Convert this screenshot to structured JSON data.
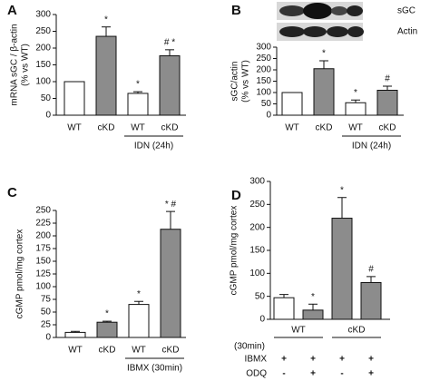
{
  "chart_data": [
    {
      "type": "bar",
      "title": "A",
      "ylabel": [
        "mRNA sGC / β-actin",
        "(% vs WT)"
      ],
      "categories": [
        "WT",
        "cKD",
        "WT",
        "cKD"
      ],
      "values": [
        100,
        235,
        65,
        177
      ],
      "errors": [
        0,
        28,
        5,
        18
      ],
      "colors": [
        "#ffffff",
        "#8c8c8c",
        "#ffffff",
        "#8c8c8c"
      ],
      "annotations": [
        null,
        "*",
        "*",
        "# *"
      ],
      "bracket": "IDN (24h)",
      "ylim": [
        0,
        300
      ],
      "yticks": [
        0,
        50,
        100,
        150,
        200,
        250,
        300
      ]
    },
    {
      "type": "bar",
      "title": "B",
      "ylabel": [
        "sGC/actin",
        "(% vs WT)"
      ],
      "blot_labels": [
        "sGC",
        "Actin"
      ],
      "categories": [
        "WT",
        "cKD",
        "WT",
        "cKD"
      ],
      "values": [
        100,
        205,
        55,
        110
      ],
      "errors": [
        0,
        35,
        12,
        18
      ],
      "colors": [
        "#ffffff",
        "#8c8c8c",
        "#ffffff",
        "#8c8c8c"
      ],
      "annotations": [
        null,
        "*",
        "*",
        "#"
      ],
      "bracket": "IDN (24h)",
      "ylim": [
        0,
        300
      ],
      "yticks": [
        0,
        50,
        100,
        150,
        200,
        250,
        300
      ]
    },
    {
      "type": "bar",
      "title": "C",
      "ylabel": [
        "cGMP pmol/mg cortex"
      ],
      "categories": [
        "WT",
        "cKD",
        "WT",
        "cKD"
      ],
      "values": [
        10,
        30,
        65,
        213
      ],
      "errors": [
        2,
        2,
        6,
        35
      ],
      "colors": [
        "#ffffff",
        "#8c8c8c",
        "#ffffff",
        "#8c8c8c"
      ],
      "annotations": [
        null,
        "*",
        "*",
        "* #"
      ],
      "bracket": "IBMX (30min)",
      "ylim": [
        0,
        250
      ],
      "yticks": [
        0,
        25,
        50,
        75,
        100,
        125,
        150,
        175,
        200,
        225,
        250
      ]
    },
    {
      "type": "bar",
      "title": "D",
      "ylabel": [
        "cGMP pmol/mg cortex"
      ],
      "categories": [
        null,
        null,
        null,
        null
      ],
      "groups": [
        "WT",
        "cKD"
      ],
      "values": [
        47,
        20,
        220,
        80
      ],
      "errors": [
        7,
        13,
        45,
        13
      ],
      "colors": [
        "#ffffff",
        "#8c8c8c",
        "#8c8c8c",
        "#8c8c8c"
      ],
      "annotations": [
        null,
        "*",
        "*",
        "#"
      ],
      "table": {
        "note": "(30min)",
        "rows": [
          {
            "label": "IBMX",
            "values": [
              "+",
              "+",
              "+",
              "+"
            ]
          },
          {
            "label": "ODQ",
            "values": [
              "-",
              "+",
              "-",
              "+"
            ]
          }
        ]
      },
      "ylim": [
        0,
        300
      ],
      "yticks": [
        0,
        50,
        100,
        150,
        200,
        250,
        300
      ]
    }
  ]
}
